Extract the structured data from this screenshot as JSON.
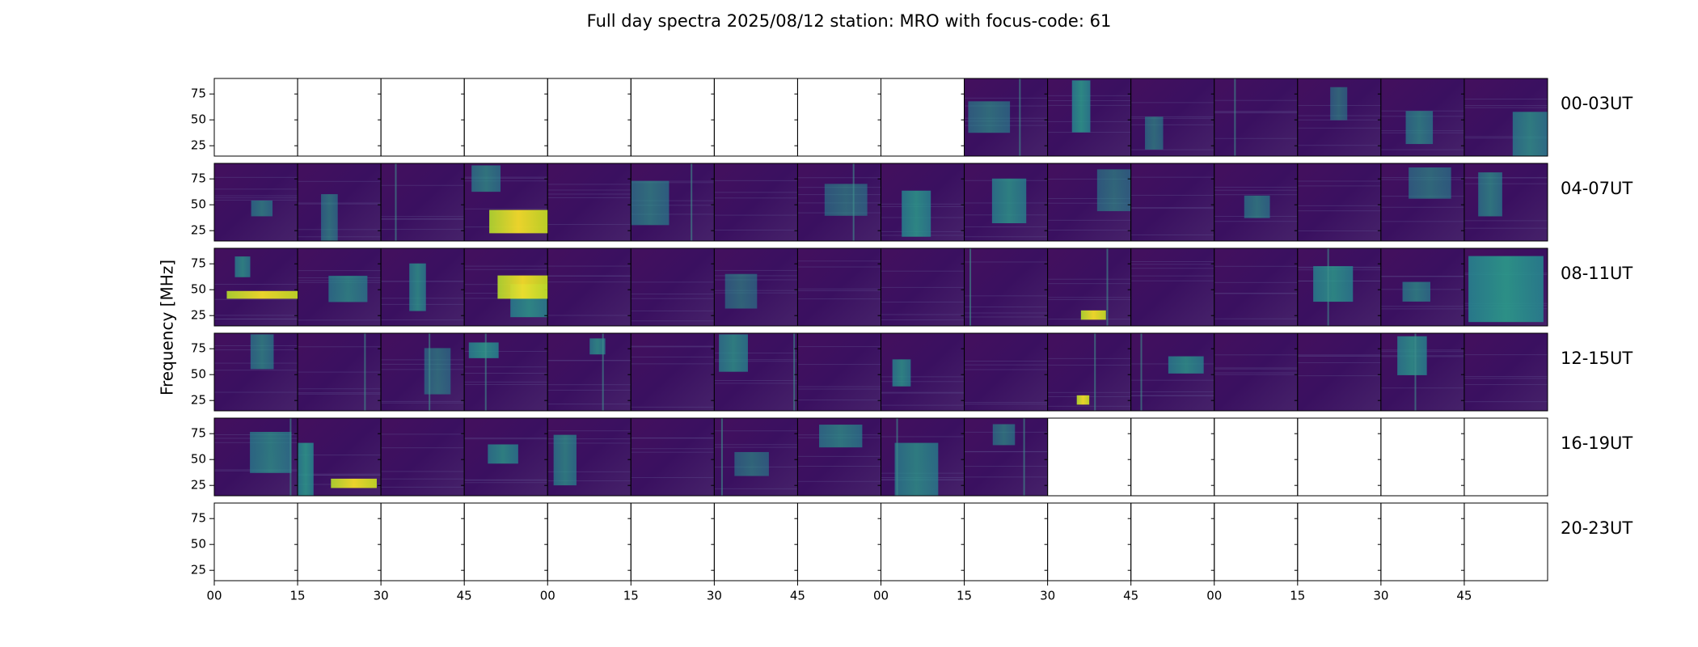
{
  "chart_data": {
    "type": "heatmap",
    "title": "Full day spectra 2025/08/12 station: MRO with focus-code: 61",
    "ylabel": "Frequency [MHz]",
    "xlabel": "",
    "colormap": "viridis",
    "ylim": [
      15,
      90
    ],
    "y_ticks": [
      "75",
      "50",
      "25"
    ],
    "y_tick_values": [
      75,
      50,
      25
    ],
    "x_ticks": [
      "00",
      "15",
      "30",
      "45",
      "00",
      "15",
      "30",
      "45",
      "00",
      "15",
      "30",
      "45",
      "00",
      "15",
      "30",
      "45"
    ],
    "panels_per_row": 16,
    "rows": [
      {
        "label": "00-03UT",
        "panels": [
          0,
          0,
          0,
          0,
          0,
          0,
          0,
          0,
          0,
          1,
          1,
          1,
          1,
          1,
          1,
          1
        ]
      },
      {
        "label": "04-07UT",
        "panels": [
          1,
          1,
          1,
          1,
          1,
          1,
          1,
          1,
          1,
          1,
          1,
          1,
          1,
          1,
          1,
          1
        ]
      },
      {
        "label": "08-11UT",
        "panels": [
          1,
          1,
          1,
          1,
          1,
          1,
          1,
          1,
          1,
          1,
          1,
          1,
          1,
          1,
          1,
          1
        ]
      },
      {
        "label": "12-15UT",
        "panels": [
          1,
          1,
          1,
          1,
          1,
          1,
          1,
          1,
          1,
          1,
          1,
          1,
          1,
          1,
          1,
          1
        ]
      },
      {
        "label": "16-19UT",
        "panels": [
          1,
          1,
          1,
          1,
          1,
          1,
          1,
          1,
          1,
          1,
          0,
          0,
          0,
          0,
          0,
          0
        ]
      },
      {
        "label": "20-23UT",
        "panels": [
          0,
          0,
          0,
          0,
          0,
          0,
          0,
          0,
          0,
          0,
          0,
          0,
          0,
          0,
          0,
          0
        ]
      }
    ],
    "grid": false,
    "legend": "none",
    "colors": {
      "low": "#3b0a55",
      "mid": "#2e6f8e",
      "high": "#35b779",
      "peak": "#fde725",
      "frame": "#000000"
    }
  }
}
